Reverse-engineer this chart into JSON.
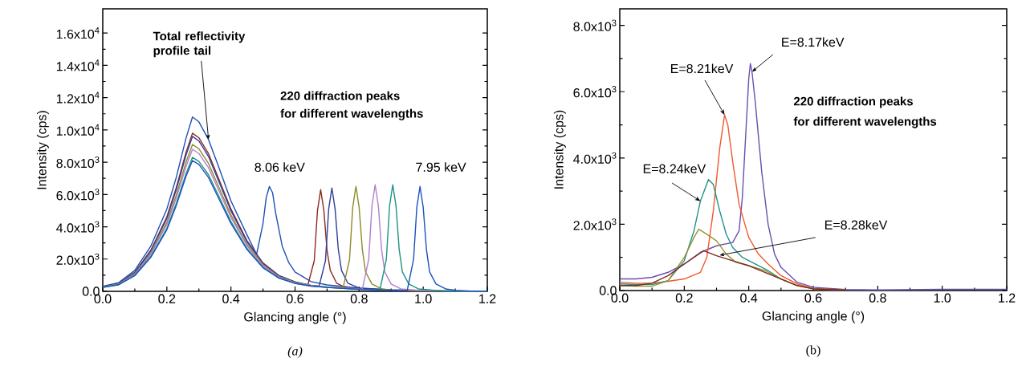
{
  "chart_data": [
    {
      "type": "line",
      "xlabel": "Glancing angle (°)",
      "ylabel": "Intensity (cps)",
      "xlim": [
        0,
        1.2
      ],
      "ylim": [
        0,
        17500
      ],
      "xticks": [
        {
          "value": 0,
          "label": "0.0"
        },
        {
          "value": 0.2,
          "label": "0.2"
        },
        {
          "value": 0.4,
          "label": "0.4"
        },
        {
          "value": 0.6,
          "label": "0.6"
        },
        {
          "value": 0.8,
          "label": "0.8"
        },
        {
          "value": 1.0,
          "label": "1.0"
        },
        {
          "value": 1.2,
          "label": "1.2"
        }
      ],
      "yticks": [
        {
          "value": 0,
          "label": "0.0"
        },
        {
          "value": 2000,
          "label": "2.0x10$^{3}$"
        },
        {
          "value": 4000,
          "label": "4.0x10$^{3}$"
        },
        {
          "value": 6000,
          "label": "6.0x10$^{3}$"
        },
        {
          "value": 8000,
          "label": "8.0x10$^{3}$"
        },
        {
          "value": 10000,
          "label": "1.0x10$^{4}$"
        },
        {
          "value": 12000,
          "label": "1.2x10$^{4}$"
        },
        {
          "value": 14000,
          "label": "1.4x10$^{4}$"
        },
        {
          "value": 16000,
          "label": "1.6x10$^{4}$"
        }
      ],
      "series": [
        {
          "color": "#1f4fb5",
          "x": [
            0,
            0.05,
            0.1,
            0.15,
            0.2,
            0.23,
            0.26,
            0.28,
            0.3,
            0.33,
            0.36,
            0.4,
            0.45,
            0.48,
            0.5,
            0.51,
            0.52,
            0.53,
            0.54,
            0.56,
            0.58,
            0.6,
            0.65,
            0.7,
            0.8,
            0.9,
            1.0,
            1.1,
            1.2
          ],
          "values": [
            320,
            540,
            1300,
            2800,
            5100,
            7100,
            9500,
            10800,
            10500,
            9400,
            7800,
            5600,
            3500,
            2300,
            4200,
            5800,
            6500,
            6100,
            4800,
            2800,
            1800,
            1200,
            600,
            400,
            200,
            100,
            50,
            20,
            0
          ]
        },
        {
          "color": "#8c2a1e",
          "x": [
            0,
            0.05,
            0.1,
            0.15,
            0.2,
            0.23,
            0.26,
            0.28,
            0.3,
            0.33,
            0.36,
            0.4,
            0.45,
            0.5,
            0.55,
            0.6,
            0.64,
            0.66,
            0.67,
            0.68,
            0.69,
            0.7,
            0.71,
            0.73,
            0.76,
            0.8
          ],
          "values": [
            290,
            490,
            1180,
            2550,
            4610,
            6470,
            8620,
            9800,
            9510,
            8530,
            7060,
            5100,
            3140,
            1760,
            980,
            590,
            400,
            1900,
            5000,
            6300,
            5000,
            2500,
            1300,
            500,
            200,
            150
          ]
        },
        {
          "color": "#2f3d9c",
          "x": [
            0,
            0.05,
            0.1,
            0.15,
            0.2,
            0.23,
            0.26,
            0.28,
            0.3,
            0.33,
            0.36,
            0.4,
            0.45,
            0.5,
            0.55,
            0.6,
            0.65,
            0.675,
            0.695,
            0.705,
            0.715,
            0.725,
            0.735,
            0.745,
            0.765,
            0.8,
            0.9,
            1.0,
            1.1,
            1.2
          ],
          "values": [
            290,
            480,
            1150,
            2500,
            4510,
            6340,
            8450,
            9600,
            9310,
            8350,
            6910,
            4990,
            3070,
            1730,
            960,
            580,
            380,
            320,
            1900,
            5100,
            6400,
            5100,
            2600,
            1300,
            500,
            200,
            80,
            40,
            20,
            0
          ]
        },
        {
          "color": "#8e8a2c",
          "x": [
            0,
            0.05,
            0.1,
            0.15,
            0.2,
            0.23,
            0.26,
            0.28,
            0.3,
            0.33,
            0.36,
            0.4,
            0.45,
            0.5,
            0.55,
            0.6,
            0.65,
            0.7,
            0.75,
            0.77,
            0.78,
            0.79,
            0.8,
            0.81,
            0.82,
            0.84,
            0.87,
            0.9,
            1.0,
            1.1,
            1.2
          ],
          "values": [
            270,
            460,
            1090,
            2370,
            4280,
            6010,
            8010,
            9100,
            8830,
            7920,
            6550,
            4730,
            2910,
            1640,
            910,
            550,
            360,
            270,
            230,
            1950,
            5200,
            6500,
            5200,
            2600,
            1200,
            450,
            150,
            80,
            40,
            20,
            0
          ]
        },
        {
          "color": "#b27fcc",
          "x": [
            0,
            0.05,
            0.1,
            0.15,
            0.2,
            0.23,
            0.26,
            0.28,
            0.3,
            0.33,
            0.36,
            0.4,
            0.45,
            0.5,
            0.55,
            0.6,
            0.65,
            0.7,
            0.75,
            0.81,
            0.83,
            0.84,
            0.85,
            0.86,
            0.87,
            0.88,
            0.9,
            0.93,
            1.0,
            1.1,
            1.2
          ],
          "values": [
            260,
            440,
            1060,
            2290,
            4140,
            5810,
            7740,
            8800,
            8540,
            7660,
            6340,
            4580,
            2820,
            1580,
            880,
            530,
            350,
            260,
            200,
            130,
            2000,
            5300,
            6600,
            5300,
            2600,
            1200,
            450,
            150,
            40,
            20,
            0
          ]
        },
        {
          "color": "#1b9484",
          "x": [
            0,
            0.05,
            0.1,
            0.15,
            0.2,
            0.23,
            0.26,
            0.28,
            0.3,
            0.33,
            0.36,
            0.4,
            0.45,
            0.5,
            0.55,
            0.6,
            0.65,
            0.7,
            0.8,
            0.865,
            0.885,
            0.895,
            0.905,
            0.915,
            0.925,
            0.935,
            0.955,
            0.985,
            1.05,
            1.1,
            1.2
          ],
          "values": [
            250,
            420,
            1000,
            2160,
            3900,
            5480,
            7300,
            8300,
            8050,
            7220,
            5980,
            4320,
            2660,
            1490,
            830,
            500,
            330,
            250,
            120,
            100,
            2000,
            5300,
            6600,
            5300,
            2600,
            1200,
            450,
            150,
            40,
            20,
            0
          ]
        },
        {
          "color": "#1c52bd",
          "x": [
            0,
            0.05,
            0.1,
            0.15,
            0.2,
            0.23,
            0.26,
            0.28,
            0.3,
            0.33,
            0.36,
            0.4,
            0.45,
            0.5,
            0.55,
            0.6,
            0.65,
            0.7,
            0.8,
            0.9,
            0.95,
            0.97,
            0.98,
            0.99,
            1.0,
            1.01,
            1.02,
            1.04,
            1.07,
            1.1,
            1.15,
            1.2
          ],
          "values": [
            240,
            410,
            970,
            2110,
            3810,
            5350,
            7130,
            8100,
            7860,
            7050,
            5830,
            4210,
            2590,
            1460,
            810,
            490,
            320,
            240,
            120,
            60,
            50,
            2000,
            5200,
            6500,
            5200,
            2600,
            1200,
            450,
            150,
            60,
            20,
            0
          ]
        }
      ],
      "annotations": [
        {
          "text": "Total reflectivity profile tail",
          "x": 0.33,
          "y": 9400
        },
        "220 diffraction peaks",
        "for different wavelengths",
        "8.06 keV",
        "7.95 keV",
        "(a)"
      ]
    },
    {
      "type": "line",
      "xlabel": "Glancing angle (°)",
      "ylabel": "Intensity (cps)",
      "xlim": [
        0,
        1.2
      ],
      "ylim": [
        0,
        8500
      ],
      "xticks": [
        {
          "value": 0,
          "label": "0.0"
        },
        {
          "value": 0.2,
          "label": "0.2"
        },
        {
          "value": 0.4,
          "label": "0.4"
        },
        {
          "value": 0.6,
          "label": "0.6"
        },
        {
          "value": 0.8,
          "label": "0.8"
        },
        {
          "value": 1.0,
          "label": "1.0"
        },
        {
          "value": 1.2,
          "label": "1.2"
        }
      ],
      "yticks": [
        {
          "value": 0,
          "label": "0.0"
        },
        {
          "value": 2000,
          "label": "2.0x10$^{3}$"
        },
        {
          "value": 4000,
          "label": "4.0x10$^{3}$"
        },
        {
          "value": 6000,
          "label": "6.0x10$^{3}$"
        },
        {
          "value": 8000,
          "label": "8.0x10$^{3}$"
        }
      ],
      "series": [
        {
          "color": "#6a4fb0",
          "x": [
            0,
            0.05,
            0.1,
            0.15,
            0.2,
            0.25,
            0.3,
            0.35,
            0.37,
            0.38,
            0.39,
            0.4,
            0.405,
            0.41,
            0.42,
            0.44,
            0.46,
            0.48,
            0.5,
            0.55,
            0.6,
            0.7,
            0.8,
            1.0,
            1.2
          ],
          "values": [
            350,
            350,
            400,
            550,
            800,
            1150,
            1350,
            1450,
            1800,
            2800,
            4600,
            6400,
            6850,
            6600,
            5700,
            3600,
            2000,
            1100,
            700,
            250,
            100,
            30,
            20,
            40,
            40
          ]
        },
        {
          "color": "#ef5a2e",
          "x": [
            0,
            0.05,
            0.1,
            0.15,
            0.2,
            0.25,
            0.27,
            0.29,
            0.31,
            0.325,
            0.335,
            0.35,
            0.37,
            0.4,
            0.43,
            0.46,
            0.5,
            0.55,
            0.6,
            0.7
          ],
          "values": [
            250,
            220,
            220,
            280,
            350,
            550,
            1000,
            2400,
            4300,
            5300,
            5000,
            3900,
            2600,
            1600,
            1100,
            800,
            450,
            200,
            60,
            20
          ]
        },
        {
          "color": "#1f948a",
          "x": [
            0,
            0.05,
            0.1,
            0.15,
            0.2,
            0.23,
            0.25,
            0.275,
            0.29,
            0.31,
            0.33,
            0.35,
            0.38,
            0.42,
            0.46,
            0.5,
            0.55
          ],
          "values": [
            200,
            180,
            180,
            300,
            900,
            1800,
            2700,
            3350,
            3200,
            2400,
            1700,
            1300,
            1000,
            800,
            600,
            350,
            150
          ]
        },
        {
          "color": "#9a9230",
          "x": [
            0,
            0.05,
            0.1,
            0.15,
            0.2,
            0.23,
            0.245,
            0.27,
            0.3,
            0.33,
            0.36,
            0.4,
            0.45,
            0.5,
            0.55,
            0.6,
            0.7
          ],
          "values": [
            150,
            130,
            130,
            300,
            1000,
            1600,
            1850,
            1700,
            1500,
            1100,
            850,
            750,
            600,
            350,
            150,
            50,
            20
          ]
        },
        {
          "color": "#7e2a22",
          "x": [
            0,
            0.05,
            0.1,
            0.15,
            0.2,
            0.26,
            0.3,
            0.35,
            0.4,
            0.45,
            0.5,
            0.55,
            0.6,
            0.7
          ],
          "values": [
            150,
            150,
            220,
            450,
            800,
            1200,
            1050,
            900,
            750,
            550,
            350,
            150,
            50,
            20
          ]
        }
      ],
      "annotations": [
        {
          "text": "E=8.17keV",
          "x": 0.41,
          "y": 6600
        },
        {
          "text": "E=8.21keV",
          "x": 0.325,
          "y": 5300
        },
        {
          "text": "E=8.24keV",
          "x": 0.25,
          "y": 2700
        },
        {
          "text": "E=8.28keV",
          "x": 0.309,
          "y": 1065
        },
        "220 diffraction peaks",
        "for different wavelengths",
        "(b)"
      ]
    }
  ]
}
